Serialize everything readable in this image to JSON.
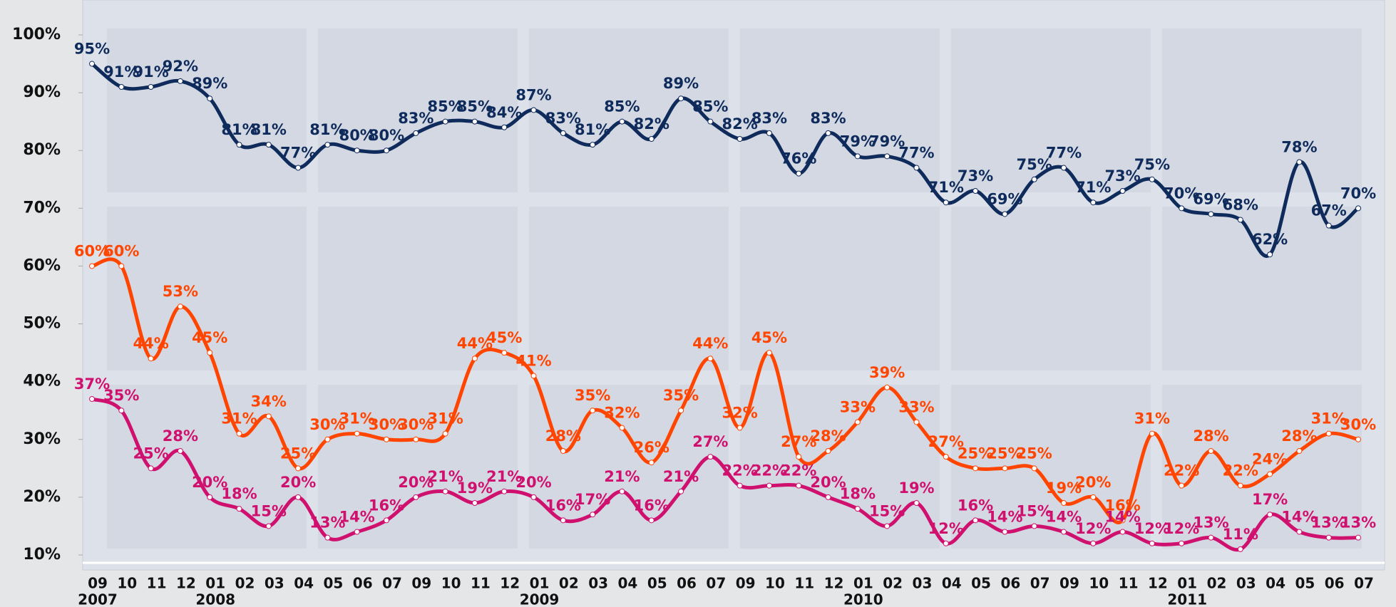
{
  "chart_data": {
    "type": "line",
    "categories": [
      "09",
      "10",
      "11",
      "12",
      "01",
      "02",
      "03",
      "04",
      "05",
      "06",
      "07",
      "09",
      "10",
      "11",
      "12",
      "01",
      "02",
      "03",
      "04",
      "05",
      "06",
      "07",
      "09",
      "10",
      "11",
      "12",
      "01",
      "02",
      "03",
      "04",
      "05",
      "06",
      "07",
      "09",
      "10",
      "11",
      "12",
      "01",
      "02",
      "03",
      "04",
      "05",
      "06",
      "07"
    ],
    "years": [
      "2007",
      null,
      null,
      null,
      "2008",
      null,
      null,
      null,
      null,
      null,
      null,
      null,
      null,
      null,
      null,
      "2009",
      null,
      null,
      null,
      null,
      null,
      null,
      null,
      null,
      null,
      null,
      "2010",
      null,
      null,
      null,
      null,
      null,
      null,
      null,
      null,
      null,
      null,
      "2011",
      null,
      null,
      null,
      null,
      null,
      null
    ],
    "ylim": [
      10,
      100
    ],
    "yticks": [
      {
        "value": 10,
        "label": "10%"
      },
      {
        "value": 20,
        "label": "20%"
      },
      {
        "value": 30,
        "label": "30%"
      },
      {
        "value": 40,
        "label": "40%"
      },
      {
        "value": 50,
        "label": "50%"
      },
      {
        "value": 60,
        "label": "60%"
      },
      {
        "value": 70,
        "label": "70%"
      },
      {
        "value": 80,
        "label": "80%"
      },
      {
        "value": 90,
        "label": "90%"
      },
      {
        "value": 100,
        "label": "100%"
      }
    ],
    "series": [
      {
        "color": "#0f2b5b",
        "values": [
          95,
          91,
          91,
          92,
          89,
          81,
          81,
          77,
          81,
          80,
          80,
          83,
          85,
          85,
          84,
          87,
          83,
          81,
          85,
          82,
          89,
          85,
          82,
          83,
          76,
          83,
          79,
          79,
          77,
          71,
          73,
          69,
          75,
          77,
          71,
          73,
          75,
          70,
          69,
          68,
          62,
          78,
          67,
          70
        ],
        "value_labels": [
          "95%",
          "91%",
          "91%",
          "92%",
          "89%",
          "81%",
          "81%",
          "77%",
          "81%",
          "80%",
          "80%",
          "83%",
          "85%",
          "85%",
          "84%",
          "87%",
          "83%",
          "81%",
          "85%",
          "82%",
          "89%",
          "85%",
          "82%",
          "83%",
          "76%",
          "83%",
          "79%",
          "79%",
          "77%",
          "71%",
          "73%",
          "69%",
          "75%",
          "77%",
          "71%",
          "73%",
          "75%",
          "70%",
          "69%",
          "68%",
          "62%",
          "78%",
          "67%",
          "70%"
        ]
      },
      {
        "color": "#ff4500",
        "values": [
          60,
          60,
          44,
          53,
          45,
          31,
          34,
          25,
          30,
          31,
          30,
          30,
          31,
          44,
          45,
          41,
          28,
          35,
          32,
          26,
          35,
          44,
          32,
          45,
          27,
          28,
          33,
          39,
          33,
          27,
          25,
          25,
          25,
          19,
          20,
          16,
          31,
          22,
          28,
          22,
          24,
          28,
          31,
          30
        ],
        "value_labels": [
          "60%",
          "60%",
          "44%",
          "53%",
          "45%",
          "31%",
          "34%",
          "25%",
          "30%",
          "31%",
          "30%",
          "30%",
          "31%",
          "44%",
          "45%",
          "41%",
          "28%",
          "35%",
          "32%",
          "26%",
          "35%",
          "44%",
          "32%",
          "45%",
          "27%",
          "28%",
          "33%",
          "39%",
          "33%",
          "27%",
          "25%",
          "25%",
          "25%",
          "19%",
          "20%",
          "16%",
          "31%",
          "22%",
          "28%",
          "22%",
          "24%",
          "28%",
          "31%",
          "30%"
        ]
      },
      {
        "color": "#d0106e",
        "values": [
          37,
          35,
          25,
          28,
          20,
          18,
          15,
          20,
          13,
          14,
          16,
          20,
          21,
          19,
          21,
          20,
          16,
          17,
          21,
          16,
          21,
          27,
          22,
          22,
          22,
          20,
          18,
          15,
          19,
          12,
          16,
          14,
          15,
          14,
          12,
          14,
          12,
          12,
          13,
          11,
          17,
          14,
          13,
          13
        ],
        "value_labels": [
          "37%",
          "35%",
          "25%",
          "28%",
          "20%",
          "18%",
          "15%",
          "20%",
          "13%",
          "14%",
          "16%",
          "20%",
          "21%",
          "19%",
          "21%",
          "20%",
          "16%",
          "17%",
          "21%",
          "16%",
          "21%",
          "27%",
          "22%",
          "22%",
          "22%",
          "20%",
          "18%",
          "15%",
          "19%",
          "12%",
          "16%",
          "14%",
          "15%",
          "14%",
          "12%",
          "14%",
          "12%",
          "12%",
          "13%",
          "11%",
          "17%",
          "14%",
          "13%",
          "13%"
        ]
      }
    ]
  }
}
